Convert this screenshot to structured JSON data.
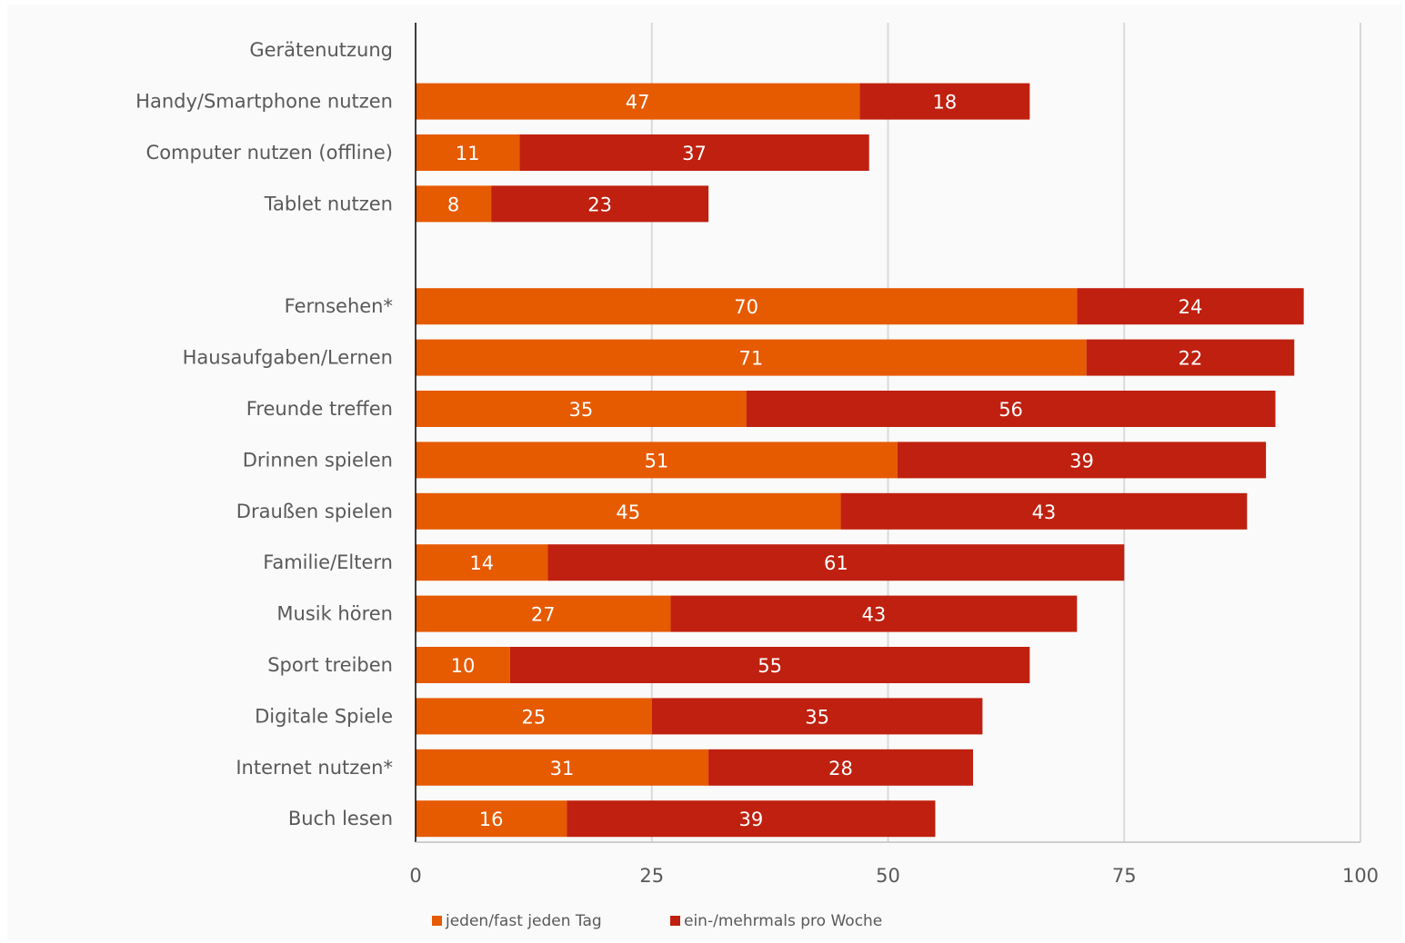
{
  "chart_data": {
    "type": "bar",
    "orientation": "horizontal",
    "stacked": true,
    "title": "",
    "xlabel": "",
    "ylabel": "",
    "xlim": [
      0,
      100
    ],
    "x_ticks": [
      0,
      25,
      50,
      75,
      100
    ],
    "grid": "vertical",
    "legend_position": "bottom",
    "categories": [
      "Gerätenutzung",
      "Handy/Smartphone nutzen",
      "Computer nutzen (offline)",
      "Tablet nutzen",
      "",
      "Fernsehen*",
      "Hausaufgaben/Lernen",
      "Freunde treffen",
      "Drinnen spielen",
      "Draußen spielen",
      "Familie/Eltern",
      "Musik hören",
      "Sport treiben",
      "Digitale Spiele",
      "Internet nutzen*",
      "Buch lesen"
    ],
    "series": [
      {
        "name": "jeden/fast jeden Tag",
        "color": "#E65A00",
        "values": [
          null,
          47,
          11,
          8,
          null,
          70,
          71,
          35,
          51,
          45,
          14,
          27,
          10,
          25,
          31,
          16
        ]
      },
      {
        "name": "ein-/mehrmals pro Woche",
        "color": "#C0200F",
        "values": [
          null,
          18,
          37,
          23,
          null,
          24,
          22,
          56,
          39,
          43,
          61,
          43,
          55,
          35,
          28,
          39
        ]
      }
    ]
  }
}
